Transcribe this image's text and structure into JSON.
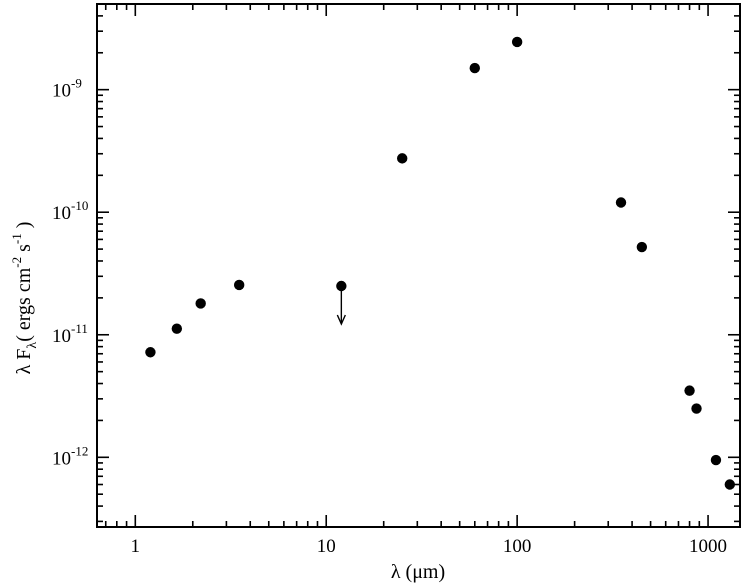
{
  "chart_data": {
    "type": "scatter",
    "x_scale": "log",
    "y_scale": "log",
    "xlim": [
      0.63,
      1470
    ],
    "ylim": [
      2.7e-13,
      5e-09
    ],
    "grid": false,
    "legend": "none",
    "xlabel": {
      "main": "λ (μm)"
    },
    "ylabel": {
      "main": "λ F",
      "sub": "λ",
      "units": "( ergs cm",
      "exp1": "-2",
      "mid": " s",
      "exp2": "-1",
      "close": " )"
    },
    "x_ticks": [
      {
        "value": 1,
        "label": "1"
      },
      {
        "value": 10,
        "label": "10"
      },
      {
        "value": 100,
        "label": "100"
      },
      {
        "value": 1000,
        "label": "1000"
      }
    ],
    "y_ticks": [
      {
        "value": 1e-12,
        "base": "10",
        "exp": "-12"
      },
      {
        "value": 1e-11,
        "base": "10",
        "exp": "-11"
      },
      {
        "value": 1e-10,
        "base": "10",
        "exp": "-10"
      },
      {
        "value": 1e-09,
        "base": "10",
        "exp": "-9"
      }
    ],
    "points": [
      {
        "x": 1.2,
        "y": 7.2e-12
      },
      {
        "x": 1.65,
        "y": 1.12e-11
      },
      {
        "x": 2.2,
        "y": 1.8e-11
      },
      {
        "x": 3.5,
        "y": 2.55e-11
      },
      {
        "x": 25,
        "y": 2.75e-10
      },
      {
        "x": 60,
        "y": 1.5e-09
      },
      {
        "x": 100,
        "y": 2.45e-09
      },
      {
        "x": 350,
        "y": 1.2e-10
      },
      {
        "x": 450,
        "y": 5.2e-11
      },
      {
        "x": 800,
        "y": 3.5e-12
      },
      {
        "x": 870,
        "y": 2.5e-12
      },
      {
        "x": 1100,
        "y": 9.5e-13
      },
      {
        "x": 1300,
        "y": 6e-13
      }
    ],
    "upper_limits": [
      {
        "x": 12,
        "y": 2.5e-11
      }
    ]
  },
  "colors": {
    "marks": "#000000",
    "background": "#ffffff"
  }
}
